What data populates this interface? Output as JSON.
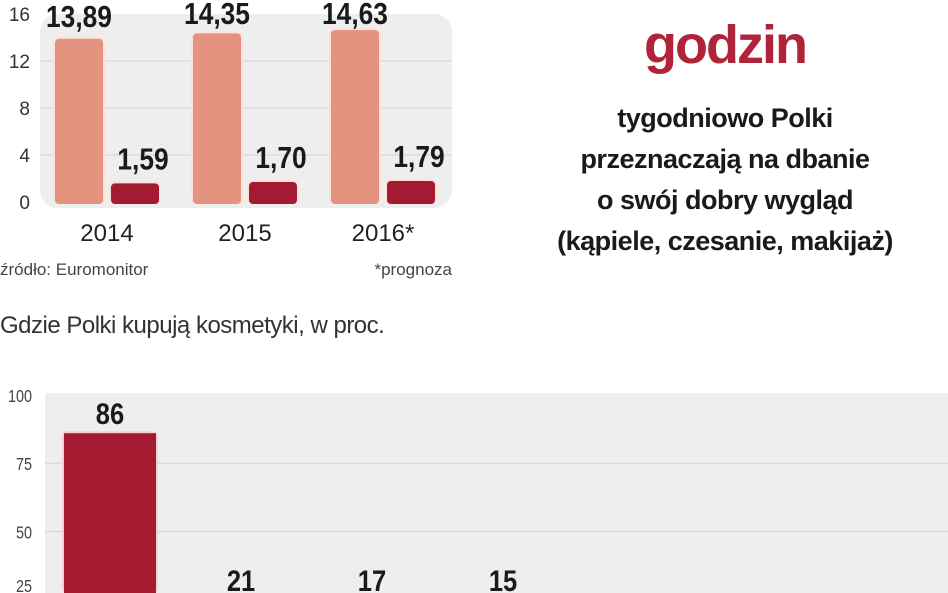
{
  "headline": {
    "big": "godzin",
    "lines": [
      "tygodniowo Polki",
      "przeznaczają na dbanie",
      "o swój dobry wygląd",
      "(kąpiele, czesanie, makijaż)"
    ]
  },
  "source": "źródło: Euromonitor",
  "footnote": "*prognoza",
  "chart_data": [
    {
      "type": "bar",
      "categories": [
        "2014",
        "2015",
        "2016*"
      ],
      "series": [
        {
          "values": [
            13.89,
            14.35,
            14.63
          ],
          "labels": [
            "13,89",
            "14,35",
            "14,63"
          ],
          "color": "#e3937f"
        },
        {
          "values": [
            1.59,
            1.7,
            1.79
          ],
          "labels": [
            "1,59",
            "1,70",
            "1,79"
          ],
          "color": "#a41a30"
        }
      ],
      "ylim": [
        0,
        16
      ],
      "yticks": [
        "0",
        "4",
        "8",
        "12",
        "16"
      ],
      "grid": true
    },
    {
      "type": "bar",
      "title": "Gdzie Polki kupują kosmetyki, w proc.",
      "values": [
        86,
        21,
        17,
        15
      ],
      "labels": [
        "86",
        "21",
        "17",
        "15"
      ],
      "color": "#a41a30",
      "ylim": [
        0,
        100
      ],
      "yticks": [
        "25",
        "50",
        "75",
        "100"
      ],
      "grid": true
    }
  ]
}
